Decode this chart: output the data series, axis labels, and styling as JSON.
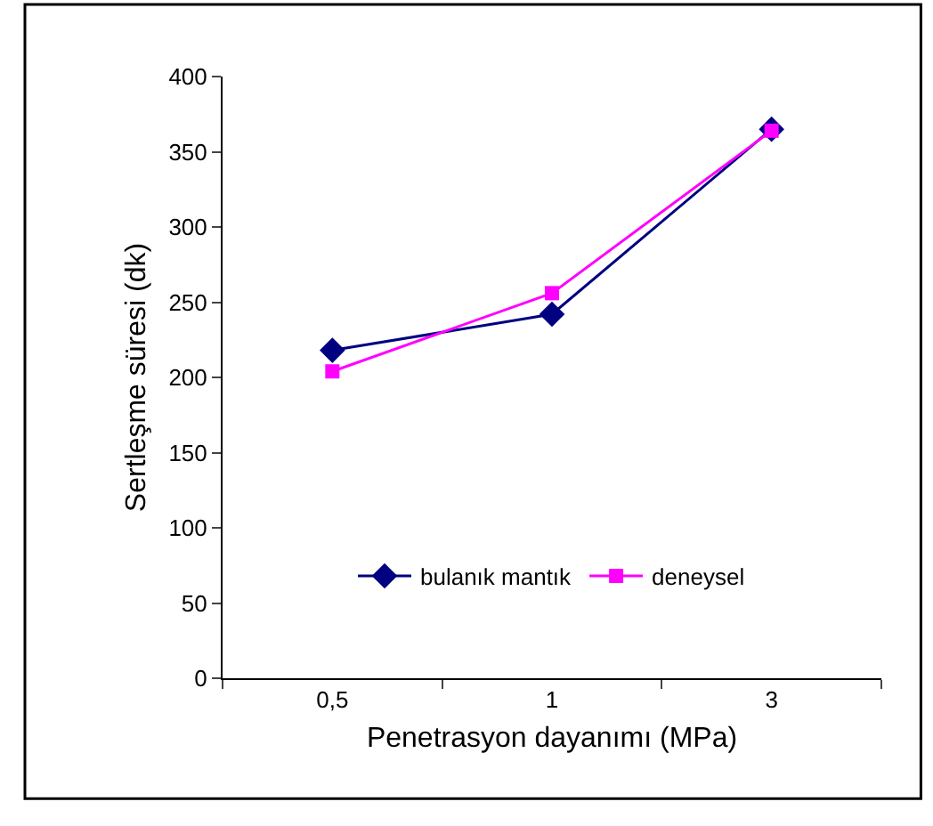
{
  "chart_data": {
    "type": "line",
    "xlabel": "Penetrasyon dayanımı (MPa)",
    "ylabel": "Sertleşme süresi (dk)",
    "categories": [
      "0,5",
      "1",
      "3"
    ],
    "series": [
      {
        "name": "bulanık mantık",
        "color": "#000080",
        "marker": "diamond",
        "values": [
          218,
          242,
          365
        ]
      },
      {
        "name": "deneysel",
        "color": "#ff00ff",
        "marker": "square",
        "values": [
          204,
          256,
          364
        ]
      }
    ],
    "ylim": [
      0,
      400
    ],
    "yticks": [
      0,
      50,
      100,
      150,
      200,
      250,
      300,
      350,
      400
    ],
    "grid": false,
    "legend": "bottom",
    "line_style": "solid"
  }
}
